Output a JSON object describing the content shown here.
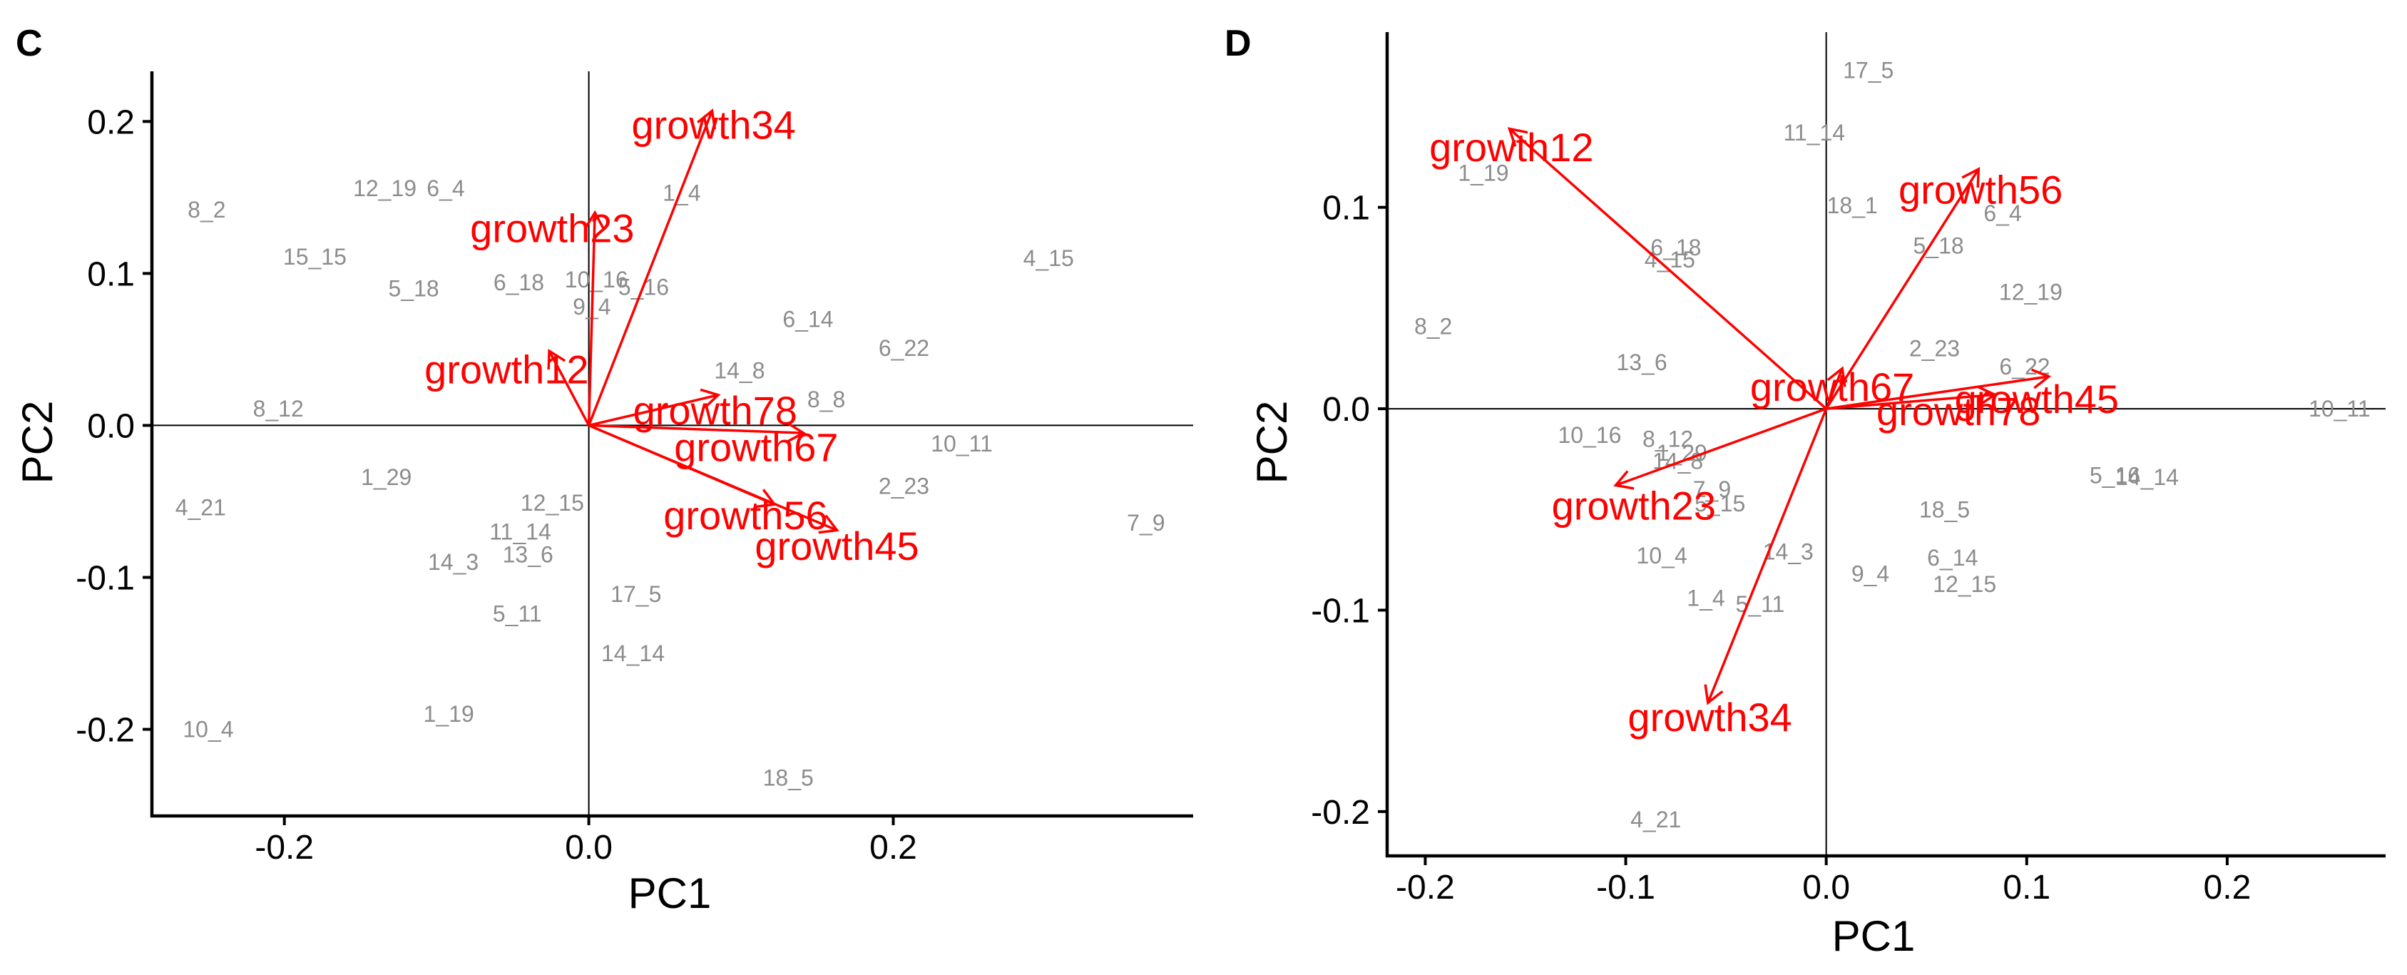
{
  "chart_data": [
    {
      "type": "scatter",
      "panel_label": "C",
      "xlabel": "PC1",
      "ylabel": "PC2",
      "xlim": [
        -0.287,
        0.397
      ],
      "ylim": [
        -0.257,
        0.233
      ],
      "xticks": [
        {
          "v": -0.2,
          "t": "-0.2"
        },
        {
          "v": 0.0,
          "t": "0.0"
        },
        {
          "v": 0.2,
          "t": "0.2"
        }
      ],
      "yticks": [
        {
          "v": 0.2,
          "t": "0.2"
        },
        {
          "v": 0.1,
          "t": "0.1"
        },
        {
          "v": 0.0,
          "t": "0.0"
        },
        {
          "v": -0.1,
          "t": "-0.1"
        },
        {
          "v": -0.2,
          "t": "-0.2"
        }
      ],
      "grid": false,
      "observations": [
        {
          "label": "8_2",
          "x": -0.251,
          "y": 0.142
        },
        {
          "label": "12_19",
          "x": -0.134,
          "y": 0.156
        },
        {
          "label": "6_4",
          "x": -0.094,
          "y": 0.156
        },
        {
          "label": "1_4",
          "x": 0.061,
          "y": 0.153
        },
        {
          "label": "15_15",
          "x": -0.18,
          "y": 0.111
        },
        {
          "label": "5_18",
          "x": -0.115,
          "y": 0.09
        },
        {
          "label": "6_18",
          "x": -0.046,
          "y": 0.094
        },
        {
          "label": "10_16",
          "x": 0.005,
          "y": 0.096
        },
        {
          "label": "5_16",
          "x": 0.036,
          "y": 0.091
        },
        {
          "label": "9_4",
          "x": 0.002,
          "y": 0.078
        },
        {
          "label": "4_15",
          "x": 0.302,
          "y": 0.11
        },
        {
          "label": "6_14",
          "x": 0.144,
          "y": 0.07
        },
        {
          "label": "6_22",
          "x": 0.207,
          "y": 0.051
        },
        {
          "label": "14_8",
          "x": 0.099,
          "y": 0.036
        },
        {
          "label": "8_8",
          "x": 0.156,
          "y": 0.017
        },
        {
          "label": "8_12",
          "x": -0.204,
          "y": 0.011
        },
        {
          "label": "10_11",
          "x": 0.245,
          "y": -0.012
        },
        {
          "label": "1_29",
          "x": -0.133,
          "y": -0.034
        },
        {
          "label": "2_23",
          "x": 0.207,
          "y": -0.04
        },
        {
          "label": "4_21",
          "x": -0.255,
          "y": -0.054
        },
        {
          "label": "12_15",
          "x": -0.024,
          "y": -0.051
        },
        {
          "label": "11_14",
          "x": -0.045,
          "y": -0.07
        },
        {
          "label": "13_6",
          "x": -0.04,
          "y": -0.085
        },
        {
          "label": "14_3",
          "x": -0.089,
          "y": -0.09
        },
        {
          "label": "7_9",
          "x": 0.366,
          "y": -0.064
        },
        {
          "label": "17_5",
          "x": 0.031,
          "y": -0.111
        },
        {
          "label": "5_11",
          "x": -0.047,
          "y": -0.124
        },
        {
          "label": "14_14",
          "x": 0.029,
          "y": -0.15
        },
        {
          "label": "1_19",
          "x": -0.092,
          "y": -0.19
        },
        {
          "label": "10_4",
          "x": -0.25,
          "y": -0.2
        },
        {
          "label": "18_5",
          "x": 0.131,
          "y": -0.232
        }
      ],
      "variables": [
        {
          "label": "growth34",
          "x": 0.081,
          "y": 0.207,
          "lx": 0.082,
          "ly": 0.198
        },
        {
          "label": "growth23",
          "x": 0.004,
          "y": 0.14,
          "lx": -0.024,
          "ly": 0.13
        },
        {
          "label": "growth12",
          "x": -0.026,
          "y": 0.049,
          "lx": -0.054,
          "ly": 0.037
        },
        {
          "label": "growth78",
          "x": 0.085,
          "y": 0.02,
          "lx": 0.083,
          "ly": 0.01
        },
        {
          "label": "growth67",
          "x": 0.141,
          "y": -0.005,
          "lx": 0.11,
          "ly": -0.014
        },
        {
          "label": "growth56",
          "x": 0.122,
          "y": -0.052,
          "lx": 0.103,
          "ly": -0.059
        },
        {
          "label": "growth45",
          "x": 0.163,
          "y": -0.069,
          "lx": 0.163,
          "ly": -0.079
        }
      ]
    },
    {
      "type": "scatter",
      "panel_label": "D",
      "xlabel": "PC1",
      "ylabel": "PC2",
      "xlim": [
        -0.219,
        0.279
      ],
      "ylim": [
        -0.222,
        0.187
      ],
      "xticks": [
        {
          "v": -0.2,
          "t": "-0.2"
        },
        {
          "v": -0.1,
          "t": "-0.1"
        },
        {
          "v": 0.0,
          "t": "0.0"
        },
        {
          "v": 0.1,
          "t": "0.1"
        },
        {
          "v": 0.2,
          "t": "0.2"
        }
      ],
      "yticks": [
        {
          "v": 0.1,
          "t": "0.1"
        },
        {
          "v": 0.0,
          "t": "0.0"
        },
        {
          "v": -0.1,
          "t": "-0.1"
        },
        {
          "v": -0.2,
          "t": "-0.2"
        }
      ],
      "grid": false,
      "observations": [
        {
          "label": "17_5",
          "x": 0.021,
          "y": 0.168
        },
        {
          "label": "11_14",
          "x": -0.006,
          "y": 0.137
        },
        {
          "label": "1_19",
          "x": -0.171,
          "y": 0.117
        },
        {
          "label": "18_1",
          "x": 0.013,
          "y": 0.101
        },
        {
          "label": "6_4",
          "x": 0.088,
          "y": 0.097
        },
        {
          "label": "6_18",
          "x": -0.075,
          "y": 0.08
        },
        {
          "label": "4_15",
          "x": -0.078,
          "y": 0.074
        },
        {
          "label": "5_18",
          "x": 0.056,
          "y": 0.081
        },
        {
          "label": "12_19",
          "x": 0.102,
          "y": 0.058
        },
        {
          "label": "8_2",
          "x": -0.196,
          "y": 0.041
        },
        {
          "label": "2_23",
          "x": 0.054,
          "y": 0.03
        },
        {
          "label": "13_6",
          "x": -0.092,
          "y": 0.023
        },
        {
          "label": "6_22",
          "x": 0.099,
          "y": 0.021
        },
        {
          "label": "10_11",
          "x": 0.256,
          "y": 0.0
        },
        {
          "label": "10_16",
          "x": -0.118,
          "y": -0.013
        },
        {
          "label": "8_12",
          "x": -0.079,
          "y": -0.015
        },
        {
          "label": "1_29",
          "x": -0.072,
          "y": -0.022
        },
        {
          "label": "14_8",
          "x": -0.074,
          "y": -0.026
        },
        {
          "label": "7_9",
          "x": -0.057,
          "y": -0.04
        },
        {
          "label": "5_15",
          "x": -0.053,
          "y": -0.047
        },
        {
          "label": "5_16",
          "x": 0.144,
          "y": -0.033
        },
        {
          "label": "14_14",
          "x": 0.16,
          "y": -0.034
        },
        {
          "label": "18_5",
          "x": 0.059,
          "y": -0.05
        },
        {
          "label": "10_4",
          "x": -0.082,
          "y": -0.073
        },
        {
          "label": "14_3",
          "x": -0.019,
          "y": -0.071
        },
        {
          "label": "6_14",
          "x": 0.063,
          "y": -0.074
        },
        {
          "label": "9_4",
          "x": 0.022,
          "y": -0.082
        },
        {
          "label": "12_15",
          "x": 0.069,
          "y": -0.087
        },
        {
          "label": "1_4",
          "x": -0.06,
          "y": -0.094
        },
        {
          "label": "5_11",
          "x": -0.033,
          "y": -0.097
        },
        {
          "label": "4_21",
          "x": -0.085,
          "y": -0.204
        }
      ],
      "variables": [
        {
          "label": "growth12",
          "x": -0.158,
          "y": 0.139,
          "lx": -0.157,
          "ly": 0.13
        },
        {
          "label": "growth56",
          "x": 0.076,
          "y": 0.119,
          "lx": 0.077,
          "ly": 0.109
        },
        {
          "label": "growth67",
          "x": 0.008,
          "y": 0.02,
          "lx": 0.003,
          "ly": 0.011
        },
        {
          "label": "growth45",
          "x": 0.111,
          "y": 0.016,
          "lx": 0.105,
          "ly": 0.005
        },
        {
          "label": "growth78",
          "x": 0.084,
          "y": 0.007,
          "lx": 0.066,
          "ly": -0.001
        },
        {
          "label": "growth23",
          "x": -0.105,
          "y": -0.038,
          "lx": -0.096,
          "ly": -0.048
        },
        {
          "label": "growth34",
          "x": -0.059,
          "y": -0.146,
          "lx": -0.058,
          "ly": -0.153
        }
      ]
    }
  ]
}
